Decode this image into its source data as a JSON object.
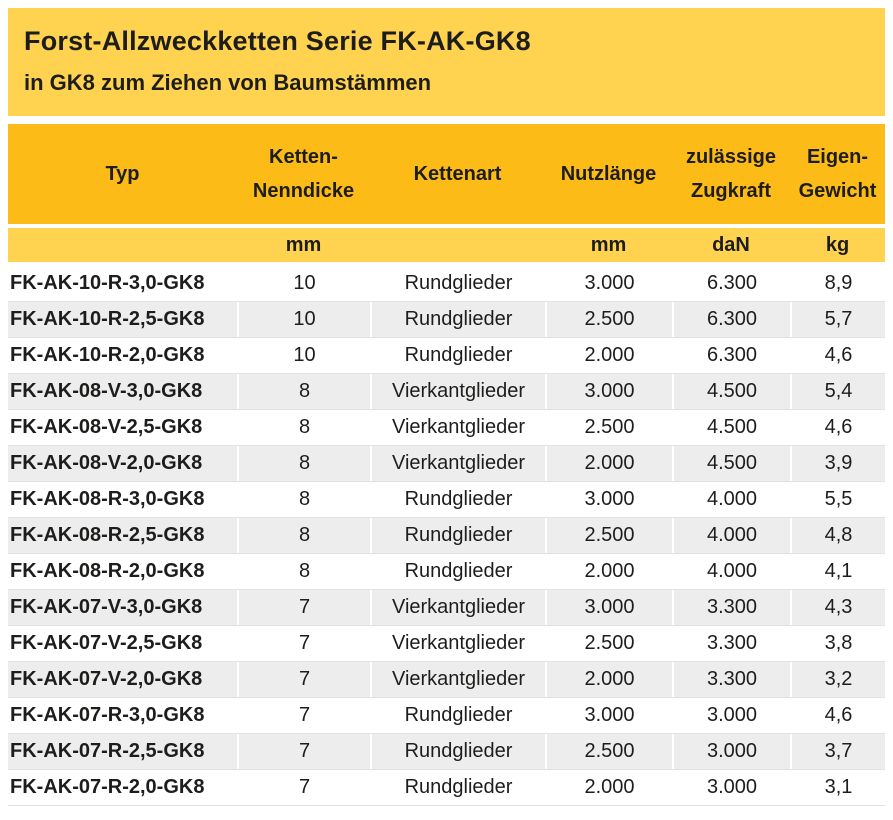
{
  "title_block": {
    "title": "Forst-Allzweckketten Serie FK-AK-GK8",
    "subtitle": "in GK8 zum Ziehen von Baumstämmen"
  },
  "colors": {
    "title_bg": "#ffd34f",
    "table_header_bg": "#fdbb17",
    "units_bg": "#ffd34f",
    "row_alt_bg": "#ededed",
    "text": "#1d1d1b"
  },
  "table": {
    "header": [
      {
        "line1": "Typ",
        "line2": ""
      },
      {
        "line1": "Ketten-",
        "line2": "Nenndicke"
      },
      {
        "line1": "Kettenart",
        "line2": ""
      },
      {
        "line1": "Nutzlänge",
        "line2": ""
      },
      {
        "line1": "zulässige",
        "line2": "Zugkraft"
      },
      {
        "line1": "Eigen-",
        "line2": "Gewicht"
      }
    ],
    "units": [
      "",
      "mm",
      "",
      "mm",
      "daN",
      "kg"
    ],
    "rows": [
      [
        "FK-AK-10-R-3,0-GK8",
        "10",
        "Rundglieder",
        "3.000",
        "6.300",
        "8,9"
      ],
      [
        "FK-AK-10-R-2,5-GK8",
        "10",
        "Rundglieder",
        "2.500",
        "6.300",
        "5,7"
      ],
      [
        "FK-AK-10-R-2,0-GK8",
        "10",
        "Rundglieder",
        "2.000",
        "6.300",
        "4,6"
      ],
      [
        "FK-AK-08-V-3,0-GK8",
        "8",
        "Vierkantglieder",
        "3.000",
        "4.500",
        "5,4"
      ],
      [
        "FK-AK-08-V-2,5-GK8",
        "8",
        "Vierkantglieder",
        "2.500",
        "4.500",
        "4,6"
      ],
      [
        "FK-AK-08-V-2,0-GK8",
        "8",
        "Vierkantglieder",
        "2.000",
        "4.500",
        "3,9"
      ],
      [
        "FK-AK-08-R-3,0-GK8",
        "8",
        "Rundglieder",
        "3.000",
        "4.000",
        "5,5"
      ],
      [
        "FK-AK-08-R-2,5-GK8",
        "8",
        "Rundglieder",
        "2.500",
        "4.000",
        "4,8"
      ],
      [
        "FK-AK-08-R-2,0-GK8",
        "8",
        "Rundglieder",
        "2.000",
        "4.000",
        "4,1"
      ],
      [
        "FK-AK-07-V-3,0-GK8",
        "7",
        "Vierkantglieder",
        "3.000",
        "3.300",
        "4,3"
      ],
      [
        "FK-AK-07-V-2,5-GK8",
        "7",
        "Vierkantglieder",
        "2.500",
        "3.300",
        "3,8"
      ],
      [
        "FK-AK-07-V-2,0-GK8",
        "7",
        "Vierkantglieder",
        "2.000",
        "3.300",
        "3,2"
      ],
      [
        "FK-AK-07-R-3,0-GK8",
        "7",
        "Rundglieder",
        "3.000",
        "3.000",
        "4,6"
      ],
      [
        "FK-AK-07-R-2,5-GK8",
        "7",
        "Rundglieder",
        "2.500",
        "3.000",
        "3,7"
      ],
      [
        "FK-AK-07-R-2,0-GK8",
        "7",
        "Rundglieder",
        "2.000",
        "3.000",
        "3,1"
      ]
    ]
  }
}
